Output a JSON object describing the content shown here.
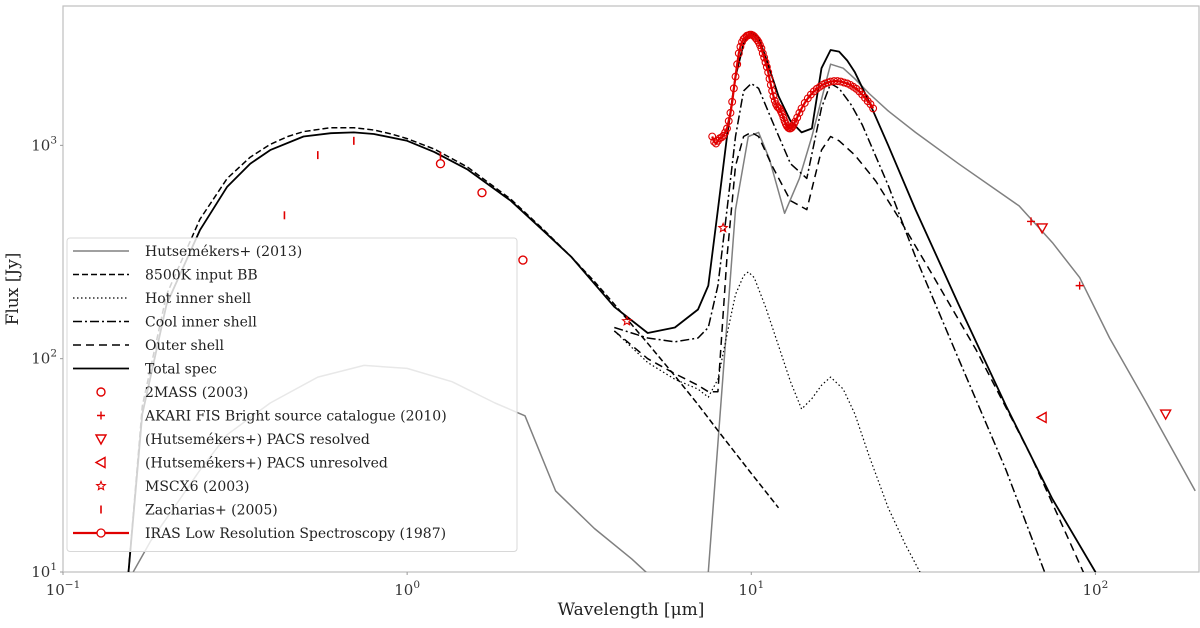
{
  "chart_data": {
    "type": "line",
    "title": "",
    "xlabel": "Wavelength [μm]",
    "ylabel": "Flux [Jy]",
    "xscale": "log",
    "yscale": "log",
    "xlim": [
      0.1,
      200
    ],
    "ylim": [
      10,
      4500
    ],
    "x_ticks": [
      {
        "value": 0.1,
        "base": "10",
        "exp": "−1"
      },
      {
        "value": 1,
        "base": "10",
        "exp": "0"
      },
      {
        "value": 10,
        "base": "10",
        "exp": "1"
      },
      {
        "value": 100,
        "base": "10",
        "exp": "2"
      }
    ],
    "y_ticks": [
      {
        "value": 10,
        "base": "10",
        "exp": "1"
      },
      {
        "value": 100,
        "base": "10",
        "exp": "2"
      },
      {
        "value": 1000,
        "base": "10",
        "exp": "3"
      }
    ],
    "legend_position": "lower-left",
    "series": [
      {
        "name": "Hutsemékers+ (2013)",
        "kind": "line",
        "color": "#808080",
        "width": 1.5,
        "dash": "",
        "x": [
          0.16,
          0.18,
          0.21,
          0.25,
          0.3,
          0.4,
          0.55,
          0.75,
          1.0,
          1.35,
          1.8,
          2.2,
          2.7,
          3.5,
          4.5,
          6.0,
          6.8,
          7.5,
          8.0,
          9.0,
          9.8,
          10.5,
          11.3,
          12.5,
          13.8,
          15.0,
          17.0,
          18.5,
          20.0,
          22.0,
          25.0,
          30.0,
          40.0,
          60.0,
          75.0,
          90.0,
          110.0,
          140.0,
          195.0
        ],
        "y": [
          10,
          14,
          20,
          30,
          44,
          62,
          82,
          93,
          90,
          78,
          62,
          54,
          24,
          16,
          11.5,
          7.5,
          6.5,
          10,
          40,
          500,
          1100,
          1150,
          860,
          480,
          700,
          1100,
          2400,
          2300,
          2050,
          1750,
          1450,
          1150,
          820,
          520,
          350,
          240,
          125,
          63,
          24
        ]
      },
      {
        "name": "8500K input BB",
        "kind": "line",
        "color": "#000000",
        "width": 1.5,
        "dash": "6,3",
        "x": [
          0.155,
          0.17,
          0.2,
          0.25,
          0.3,
          0.35,
          0.4,
          0.45,
          0.5,
          0.6,
          0.7,
          0.8,
          0.9,
          1.0,
          1.2,
          1.5,
          2.0,
          2.5,
          3.0,
          3.5,
          4.0,
          5.0,
          6.0,
          7.0,
          8.0,
          10.0,
          12.0
        ],
        "y": [
          10,
          60,
          200,
          450,
          700,
          880,
          1010,
          1100,
          1160,
          1210,
          1210,
          1180,
          1130,
          1075,
          960,
          790,
          560,
          400,
          300,
          230,
          180,
          118,
          83,
          61,
          46,
          29,
          20
        ]
      },
      {
        "name": "Hot inner shell",
        "kind": "line",
        "color": "#000000",
        "width": 1.2,
        "dash": "1.5,2.5",
        "x": [
          4.0,
          5.0,
          6.0,
          7.0,
          7.5,
          8.0,
          8.5,
          9.0,
          9.5,
          9.8,
          10.2,
          11.0,
          12.0,
          13.0,
          14.0,
          15.0,
          16.0,
          17.0,
          18.5,
          20.0,
          22.0,
          25.0,
          28.0,
          32.0
        ],
        "y": [
          135,
          96,
          80,
          72,
          66,
          80,
          130,
          200,
          245,
          255,
          240,
          175,
          115,
          78,
          58,
          65,
          75,
          82,
          72,
          55,
          35,
          20,
          13.5,
          9
        ]
      },
      {
        "name": "Cool inner shell",
        "kind": "line",
        "color": "#000000",
        "width": 1.5,
        "dash": "9,3,2,3",
        "x": [
          4.0,
          5.0,
          6.0,
          7.0,
          7.5,
          8.0,
          8.5,
          9.0,
          9.5,
          10.0,
          10.5,
          11.5,
          13.0,
          14.5,
          16.0,
          17.0,
          18.0,
          19.5,
          21.0,
          25.0,
          30.0,
          40.0,
          55.0,
          75.0
        ],
        "y": [
          140,
          125,
          120,
          125,
          140,
          220,
          500,
          1100,
          1800,
          1950,
          1850,
          1300,
          820,
          700,
          1500,
          1950,
          1850,
          1550,
          1250,
          650,
          300,
          100,
          30,
          8
        ]
      },
      {
        "name": "Outer shell",
        "kind": "line",
        "color": "#000000",
        "width": 1.5,
        "dash": "8,5",
        "x": [
          4.0,
          5.0,
          6.0,
          7.0,
          7.5,
          8.0,
          8.5,
          9.0,
          9.5,
          10.0,
          10.5,
          11.5,
          13.0,
          14.5,
          16.0,
          17.0,
          18.0,
          20.0,
          23.0,
          27.0,
          33.0,
          45.0,
          65.0,
          95.0
        ],
        "y": [
          135,
          100,
          85,
          75,
          70,
          70,
          300,
          800,
          1100,
          1150,
          1100,
          800,
          550,
          500,
          950,
          1100,
          1050,
          900,
          680,
          450,
          260,
          110,
          35,
          9
        ]
      },
      {
        "name": "Total spec",
        "kind": "line",
        "color": "#000000",
        "width": 1.8,
        "dash": "",
        "x": [
          0.155,
          0.17,
          0.2,
          0.25,
          0.3,
          0.35,
          0.4,
          0.5,
          0.6,
          0.7,
          0.8,
          1.0,
          1.2,
          1.5,
          2.0,
          2.5,
          3.0,
          4.0,
          5.0,
          6.0,
          7.0,
          7.5,
          8.0,
          8.5,
          9.0,
          9.5,
          10.0,
          10.5,
          11.0,
          12.0,
          13.0,
          14.0,
          15.0,
          16.0,
          17.0,
          18.0,
          19.0,
          20.0,
          22.0,
          25.0,
          30.0,
          40.0,
          55.0,
          75.0,
          100.0,
          110.0
        ],
        "y": [
          10,
          55,
          180,
          400,
          640,
          820,
          950,
          1100,
          1140,
          1150,
          1130,
          1050,
          930,
          770,
          550,
          395,
          300,
          175,
          132,
          140,
          170,
          220,
          500,
          1100,
          2100,
          3000,
          3400,
          3200,
          2600,
          1700,
          1300,
          1150,
          1200,
          2300,
          2800,
          2750,
          2500,
          2200,
          1600,
          1000,
          500,
          180,
          60,
          22,
          10,
          8
        ]
      }
    ],
    "point_series": [
      {
        "name": "2MASS (2003)",
        "marker": "circle",
        "color": "#e00000",
        "x": [
          1.25,
          1.65,
          2.17
        ],
        "y": [
          820,
          600,
          290
        ]
      },
      {
        "name": "AKARI FIS Bright source catalogue (2010)",
        "marker": "plus",
        "color": "#e00000",
        "x": [
          65,
          90
        ],
        "y": [
          440,
          220
        ]
      },
      {
        "name": "(Hutsemékers+) PACS resolved",
        "marker": "triangle-down",
        "color": "#e00000",
        "x": [
          70,
          160
        ],
        "y": [
          410,
          55
        ]
      },
      {
        "name": "(Hutsemékers+) PACS unresolved",
        "marker": "triangle-left",
        "color": "#e00000",
        "x": [
          70
        ],
        "y": [
          53
        ]
      },
      {
        "name": "MSCX6 (2003)",
        "marker": "star",
        "color": "#e00000",
        "x": [
          4.35,
          8.28
        ],
        "y": [
          150,
          410
        ]
      },
      {
        "name": "Zacharias+ (2005)",
        "marker": "vbar",
        "color": "#e00000",
        "x": [
          0.44,
          0.55,
          0.7,
          1.25
        ],
        "y": [
          470,
          900,
          1050,
          890
        ]
      }
    ],
    "iras_lrs": {
      "name": "IRAS Low Resolution Spectroscopy (1987)",
      "color": "#e00000",
      "x": [
        7.7,
        7.8,
        7.9,
        8.0,
        8.1,
        8.2,
        8.3,
        8.4,
        8.5,
        8.6,
        8.7,
        8.8,
        8.9,
        9.0,
        9.1,
        9.2,
        9.3,
        9.4,
        9.5,
        9.6,
        9.7,
        9.8,
        9.9,
        10.0,
        10.1,
        10.2,
        10.3,
        10.4,
        10.5,
        10.6,
        10.7,
        10.8,
        10.9,
        11.0,
        11.1,
        11.2,
        11.3,
        11.4,
        11.5,
        11.6,
        11.7,
        11.8,
        11.9,
        12.0,
        12.1,
        12.2,
        12.3,
        12.4,
        12.5,
        12.6,
        12.7,
        12.8,
        12.9,
        13.0,
        13.1,
        13.2,
        13.3,
        13.4,
        13.6,
        13.8,
        14.0,
        14.3,
        14.6,
        14.9,
        15.2,
        15.5,
        15.8,
        16.1,
        16.4,
        16.7,
        17.0,
        17.4,
        17.8,
        18.2,
        18.6,
        19.0,
        19.4,
        19.8,
        20.2,
        20.6,
        21.0,
        21.4,
        21.8,
        22.2,
        22.6
      ],
      "y": [
        1100,
        1040,
        1020,
        1050,
        1080,
        1090,
        1110,
        1150,
        1200,
        1300,
        1420,
        1600,
        1850,
        2100,
        2400,
        2700,
        2900,
        3050,
        3150,
        3200,
        3260,
        3280,
        3300,
        3300,
        3280,
        3240,
        3180,
        3120,
        3050,
        2950,
        2850,
        2700,
        2580,
        2450,
        2330,
        2200,
        2050,
        1920,
        1800,
        1700,
        1620,
        1560,
        1520,
        1500,
        1480,
        1440,
        1400,
        1350,
        1300,
        1260,
        1230,
        1210,
        1200,
        1200,
        1210,
        1230,
        1260,
        1290,
        1350,
        1420,
        1490,
        1580,
        1660,
        1730,
        1790,
        1840,
        1880,
        1920,
        1950,
        1970,
        1990,
        2000,
        2000,
        1990,
        1970,
        1950,
        1920,
        1880,
        1840,
        1790,
        1730,
        1670,
        1610,
        1560,
        1490
      ]
    }
  }
}
